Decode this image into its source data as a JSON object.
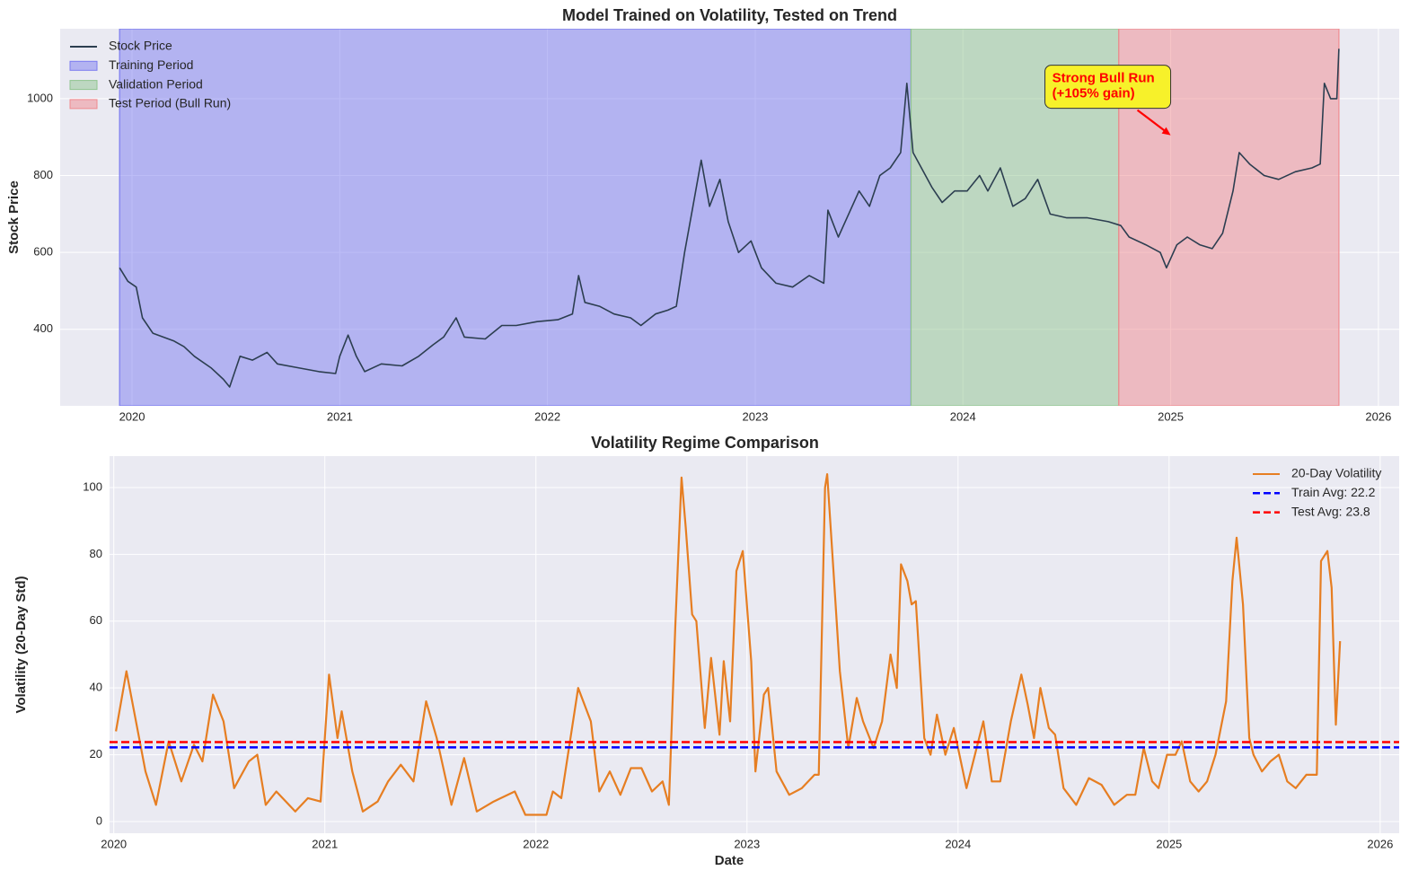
{
  "chart_data": [
    {
      "type": "line",
      "title": "Model Trained on Volatility, Tested on Trend",
      "ylabel": "Stock Price",
      "xlim": [
        2019.654,
        2026.1
      ],
      "xticks": [
        2020,
        2021,
        2022,
        2023,
        2024,
        2025,
        2026
      ],
      "ylim": [
        201,
        1182
      ],
      "yticks": [
        400,
        600,
        800,
        1000
      ],
      "grid": true,
      "legend": "upper left",
      "spans": [
        {
          "name": "Training Period",
          "start": 2019.94,
          "end": 2023.75,
          "color": "#7b7bf0"
        },
        {
          "name": "Validation Period",
          "start": 2023.75,
          "end": 2024.75,
          "color": "#8fc48f"
        },
        {
          "name": "Test Period (Bull Run)",
          "start": 2024.75,
          "end": 2025.81,
          "color": "#f08a8f"
        }
      ],
      "series": [
        {
          "name": "Stock Price",
          "color": "#2c3e50",
          "x": [
            2019.94,
            2019.98,
            2020.02,
            2020.05,
            2020.1,
            2020.2,
            2020.25,
            2020.3,
            2020.38,
            2020.44,
            2020.47,
            2020.52,
            2020.58,
            2020.65,
            2020.7,
            2020.8,
            2020.9,
            2020.98,
            2021.0,
            2021.04,
            2021.08,
            2021.12,
            2021.2,
            2021.3,
            2021.38,
            2021.45,
            2021.5,
            2021.56,
            2021.6,
            2021.7,
            2021.78,
            2021.85,
            2021.95,
            2022.05,
            2022.12,
            2022.15,
            2022.18,
            2022.25,
            2022.32,
            2022.4,
            2022.45,
            2022.52,
            2022.58,
            2022.62,
            2022.66,
            2022.7,
            2022.74,
            2022.78,
            2022.83,
            2022.87,
            2022.92,
            2022.98,
            2023.03,
            2023.1,
            2023.18,
            2023.26,
            2023.33,
            2023.35,
            2023.4,
            2023.45,
            2023.5,
            2023.55,
            2023.6,
            2023.65,
            2023.7,
            2023.73,
            2023.76,
            2023.8,
            2023.85,
            2023.9,
            2023.96,
            2024.02,
            2024.08,
            2024.12,
            2024.18,
            2024.24,
            2024.3,
            2024.36,
            2024.42,
            2024.5,
            2024.6,
            2024.7,
            2024.76,
            2024.8,
            2024.88,
            2024.95,
            2024.98,
            2025.03,
            2025.08,
            2025.14,
            2025.2,
            2025.25,
            2025.3,
            2025.33,
            2025.38,
            2025.45,
            2025.52,
            2025.6,
            2025.68,
            2025.72,
            2025.74,
            2025.77,
            2025.8,
            2025.81
          ],
          "values": [
            560,
            525,
            510,
            430,
            390,
            370,
            355,
            330,
            300,
            270,
            250,
            330,
            320,
            340,
            310,
            300,
            290,
            285,
            330,
            385,
            330,
            290,
            310,
            305,
            330,
            360,
            380,
            430,
            380,
            375,
            410,
            410,
            420,
            425,
            440,
            540,
            470,
            460,
            440,
            430,
            410,
            440,
            450,
            460,
            600,
            720,
            840,
            720,
            790,
            680,
            600,
            630,
            560,
            520,
            510,
            540,
            520,
            710,
            640,
            700,
            760,
            720,
            800,
            820,
            860,
            1040,
            860,
            820,
            770,
            730,
            760,
            760,
            800,
            760,
            820,
            720,
            740,
            790,
            700,
            690,
            690,
            680,
            670,
            640,
            620,
            600,
            560,
            620,
            640,
            620,
            610,
            650,
            760,
            860,
            830,
            800,
            790,
            810,
            820,
            830,
            1040,
            1000,
            1000,
            1130
          ]
        }
      ],
      "annotation": {
        "lines": [
          "Strong Bull Run",
          "(+105% gain)"
        ],
        "xy": [
          2025.0,
          905
        ]
      }
    },
    {
      "type": "line",
      "title": "Volatility Regime Comparison",
      "xlabel": "Date",
      "ylabel": "Volatility (20-Day Std)",
      "xlim": [
        2019.98,
        2026.09
      ],
      "xticks": [
        2020,
        2021,
        2022,
        2023,
        2024,
        2025,
        2026
      ],
      "ylim": [
        -3.5,
        109.4
      ],
      "yticks": [
        0,
        20,
        40,
        60,
        80,
        100
      ],
      "grid": true,
      "legend": "upper right",
      "series": [
        {
          "name": "20-Day Volatility",
          "color": "#e67e22",
          "x": [
            2020.01,
            2020.06,
            2020.15,
            2020.2,
            2020.26,
            2020.32,
            2020.38,
            2020.42,
            2020.47,
            2020.52,
            2020.57,
            2020.64,
            2020.68,
            2020.72,
            2020.77,
            2020.86,
            2020.92,
            2020.98,
            2021.02,
            2021.06,
            2021.08,
            2021.13,
            2021.18,
            2021.25,
            2021.3,
            2021.36,
            2021.42,
            2021.48,
            2021.53,
            2021.6,
            2021.66,
            2021.72,
            2021.8,
            2021.9,
            2021.95,
            2022.05,
            2022.08,
            2022.12,
            2022.2,
            2022.26,
            2022.3,
            2022.35,
            2022.4,
            2022.45,
            2022.5,
            2022.55,
            2022.6,
            2022.63,
            2022.66,
            2022.69,
            2022.71,
            2022.74,
            2022.76,
            2022.8,
            2022.83,
            2022.87,
            2022.89,
            2022.92,
            2022.95,
            2022.98,
            2023.02,
            2023.04,
            2023.08,
            2023.1,
            2023.14,
            2023.2,
            2023.26,
            2023.32,
            2023.34,
            2023.37,
            2023.38,
            2023.41,
            2023.44,
            2023.48,
            2023.52,
            2023.55,
            2023.6,
            2023.64,
            2023.68,
            2023.71,
            2023.73,
            2023.76,
            2023.78,
            2023.8,
            2023.84,
            2023.87,
            2023.9,
            2023.94,
            2023.98,
            2024.0,
            2024.04,
            2024.08,
            2024.12,
            2024.16,
            2024.2,
            2024.25,
            2024.3,
            2024.33,
            2024.36,
            2024.39,
            2024.43,
            2024.46,
            2024.5,
            2024.56,
            2024.62,
            2024.68,
            2024.74,
            2024.8,
            2024.84,
            2024.88,
            2024.92,
            2024.95,
            2024.99,
            2025.03,
            2025.06,
            2025.1,
            2025.14,
            2025.18,
            2025.22,
            2025.27,
            2025.3,
            2025.32,
            2025.35,
            2025.38,
            2025.4,
            2025.44,
            2025.48,
            2025.52,
            2025.56,
            2025.6,
            2025.65,
            2025.7,
            2025.72,
            2025.75,
            2025.77,
            2025.79,
            2025.81
          ],
          "values": [
            27,
            45,
            15,
            5,
            24,
            12,
            23,
            18,
            38,
            30,
            10,
            18,
            20,
            5,
            9,
            3,
            7,
            6,
            44,
            25,
            33,
            15,
            3,
            6,
            12,
            17,
            12,
            36,
            25,
            5,
            19,
            3,
            6,
            9,
            2,
            2,
            9,
            7,
            40,
            30,
            9,
            15,
            8,
            16,
            16,
            9,
            12,
            5,
            58,
            103,
            88,
            62,
            60,
            28,
            49,
            26,
            48,
            30,
            75,
            81,
            48,
            15,
            38,
            40,
            15,
            8,
            10,
            14,
            14,
            100,
            104,
            75,
            45,
            22,
            37,
            30,
            22,
            30,
            50,
            40,
            77,
            72,
            65,
            66,
            25,
            20,
            32,
            20,
            28,
            22,
            10,
            20,
            30,
            12,
            12,
            30,
            44,
            35,
            25,
            40,
            28,
            26,
            10,
            5,
            13,
            11,
            5,
            8,
            8,
            22,
            12,
            10,
            20,
            20,
            24,
            12,
            9,
            12,
            20,
            36,
            72,
            85,
            65,
            25,
            20,
            15,
            18,
            20,
            12,
            10,
            14,
            14,
            78,
            81,
            70,
            29,
            54
          ]
        }
      ],
      "hlines": [
        {
          "name": "Train Avg: 22.2",
          "value": 22.2,
          "color": "#0000ff"
        },
        {
          "name": "Test Avg: 23.8",
          "value": 23.8,
          "color": "#ff0000"
        }
      ]
    }
  ]
}
